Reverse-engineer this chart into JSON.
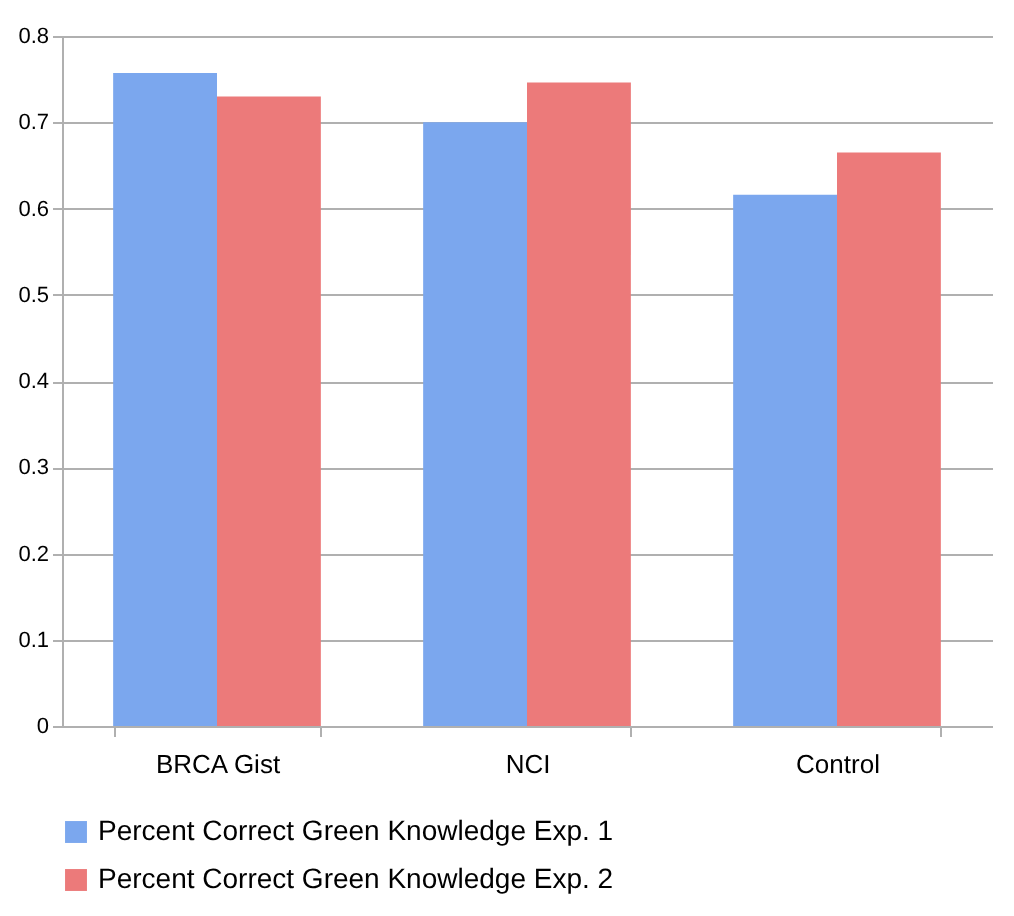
{
  "chart_data": {
    "type": "bar",
    "categories": [
      "BRCA Gist",
      "NCI",
      "Control"
    ],
    "series": [
      {
        "name": "Percent Correct Green Knowledge Exp. 1",
        "color": "#7ba7ee",
        "values": [
          0.757,
          0.7,
          0.616
        ]
      },
      {
        "name": "Percent Correct Green Knowledge Exp. 2",
        "color": "#ec7a7a",
        "values": [
          0.73,
          0.746,
          0.665
        ]
      }
    ],
    "ylim": [
      0,
      0.8
    ],
    "yticks": [
      0,
      0.1,
      0.2,
      0.3,
      0.4,
      0.5,
      0.6,
      0.7,
      0.8
    ],
    "grid": "y",
    "legend": "bottom"
  }
}
